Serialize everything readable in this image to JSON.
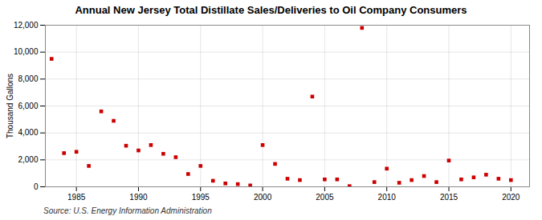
{
  "chart_data": {
    "type": "scatter",
    "title": "Annual New Jersey Total Distillate Sales/Deliveries to Oil Company Consumers",
    "ylabel": "Thousand Gallons",
    "annotations": [
      "Source: U.S. Energy Information Administration"
    ],
    "x": [
      1983,
      1984,
      1985,
      1986,
      1987,
      1988,
      1989,
      1990,
      1991,
      1992,
      1993,
      1994,
      1995,
      1996,
      1997,
      1998,
      1999,
      2000,
      2001,
      2002,
      2003,
      2004,
      2005,
      2006,
      2007,
      2008,
      2009,
      2010,
      2011,
      2012,
      2013,
      2014,
      2015,
      2016,
      2017,
      2018,
      2019,
      2020
    ],
    "values": [
      9500,
      2500,
      2600,
      1550,
      5600,
      4900,
      3050,
      2700,
      3100,
      2450,
      2200,
      950,
      1550,
      450,
      250,
      200,
      100,
      3100,
      1700,
      600,
      500,
      6700,
      550,
      550,
      50,
      11800,
      350,
      1350,
      300,
      500,
      800,
      350,
      1950,
      550,
      700,
      900,
      600,
      500
    ],
    "color": "#cc0000",
    "marker": "square",
    "xlim": [
      1982.5,
      2021.5
    ],
    "xticks": [
      1985,
      1990,
      1995,
      2000,
      2005,
      2010,
      2015,
      2020
    ],
    "ylim": [
      0,
      12000
    ],
    "yticks": [
      0,
      {
        "value": 2000,
        "label": "2,000"
      },
      {
        "value": 4000,
        "label": "4,000"
      },
      {
        "value": 6000,
        "label": "6,000"
      },
      {
        "value": 8000,
        "label": "8,000"
      },
      {
        "value": 10000,
        "label": "10,000"
      },
      {
        "value": 12000,
        "label": "12,000"
      }
    ],
    "grid": true
  }
}
